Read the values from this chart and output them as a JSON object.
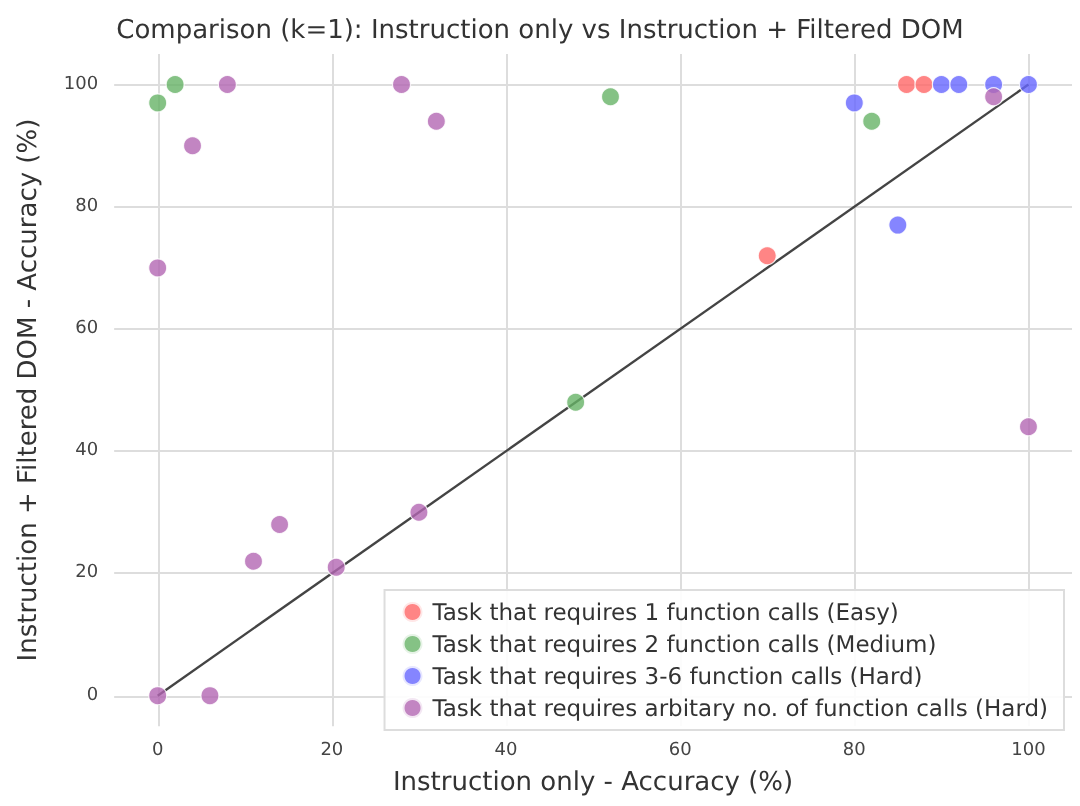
{
  "chart_data": {
    "type": "scatter",
    "title": "Comparison (k=1): Instruction only vs Instruction + Filtered DOM",
    "xlabel": "Instruction only - Accuracy (%)",
    "ylabel": "Instruction + Filtered DOM - Accuracy (%)",
    "xlim": [
      -5,
      105
    ],
    "ylim": [
      -5,
      105
    ],
    "xticks": [
      0,
      20,
      40,
      60,
      80,
      100
    ],
    "yticks": [
      0,
      20,
      40,
      60,
      80,
      100
    ],
    "grid": true,
    "legend": "bottom right",
    "marker": "circle",
    "series": [
      {
        "name": "Task that requires 1 function calls (Easy)",
        "color": "#ff6666",
        "x": [
          70,
          86,
          88
        ],
        "values": [
          72,
          100,
          100
        ]
      },
      {
        "name": "Task that requires 2 function calls (Medium)",
        "color": "#66b366",
        "x": [
          0,
          2,
          52,
          48,
          82
        ],
        "values": [
          97,
          100,
          98,
          48,
          94
        ]
      },
      {
        "name": "Task that requires 3-6 function calls (Hard)",
        "color": "#6666ff",
        "x": [
          80,
          85,
          90,
          92,
          96,
          100
        ],
        "values": [
          97,
          77,
          100,
          100,
          100,
          100
        ]
      },
      {
        "name": "Task that requires arbitary no. of function calls (Hard)",
        "color": "#b366b3",
        "x": [
          0,
          4,
          8,
          28,
          32,
          11,
          14,
          20.5,
          30,
          0,
          6,
          100,
          96
        ],
        "values": [
          70,
          90,
          100,
          100,
          94,
          22,
          28,
          21,
          30,
          0,
          0,
          44,
          98
        ]
      },
      {
        "type": "line",
        "color": "#444444",
        "x": [
          0,
          100
        ],
        "values": [
          0,
          100
        ],
        "marker": "none"
      }
    ]
  }
}
